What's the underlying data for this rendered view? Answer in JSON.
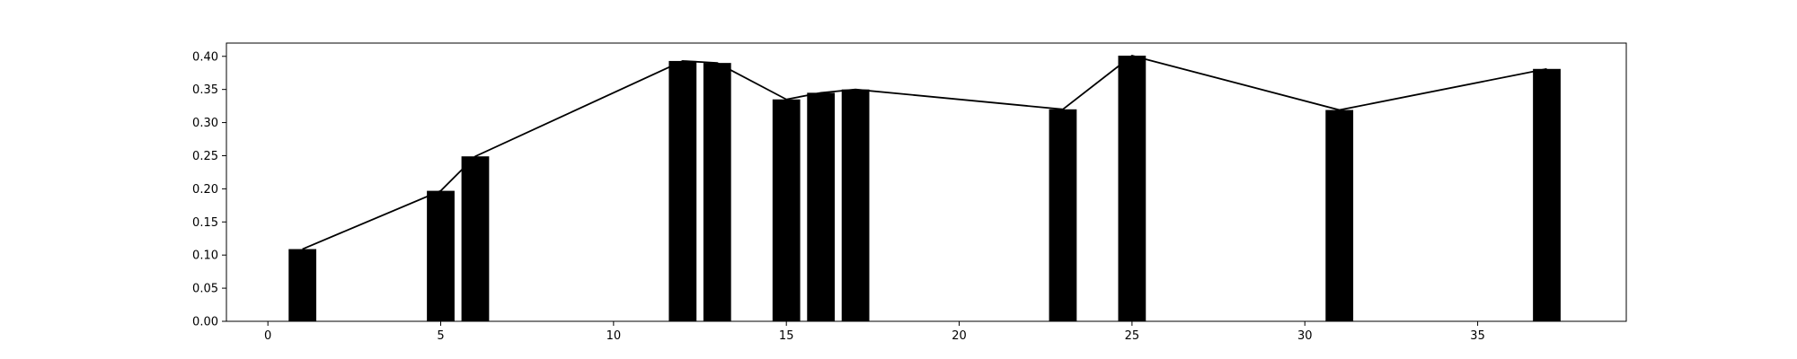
{
  "chart_data": {
    "type": "bar",
    "title": "",
    "xlabel": "",
    "ylabel": "",
    "xlim": [
      -1.2,
      39.3
    ],
    "ylim": [
      0,
      0.42
    ],
    "x_ticks": [
      0,
      5,
      10,
      15,
      20,
      25,
      30,
      35
    ],
    "y_ticks": [
      0.0,
      0.05,
      0.1,
      0.15,
      0.2,
      0.25,
      0.3,
      0.35,
      0.4
    ],
    "x_tick_labels": [
      "0",
      "5",
      "10",
      "15",
      "20",
      "25",
      "30",
      "35"
    ],
    "y_tick_labels": [
      "0.00",
      "0.05",
      "0.10",
      "0.15",
      "0.20",
      "0.25",
      "0.30",
      "0.35",
      "0.40"
    ],
    "bar_width": 0.8,
    "grid": false,
    "bar_color": "#000000",
    "line_color": "#000000",
    "series": [
      {
        "x": [
          1,
          5,
          6,
          12,
          13,
          15,
          16,
          17,
          23,
          25,
          31,
          37
        ],
        "values": [
          0.109,
          0.197,
          0.249,
          0.393,
          0.39,
          0.335,
          0.345,
          0.35,
          0.32,
          0.401,
          0.319,
          0.381
        ]
      }
    ]
  }
}
